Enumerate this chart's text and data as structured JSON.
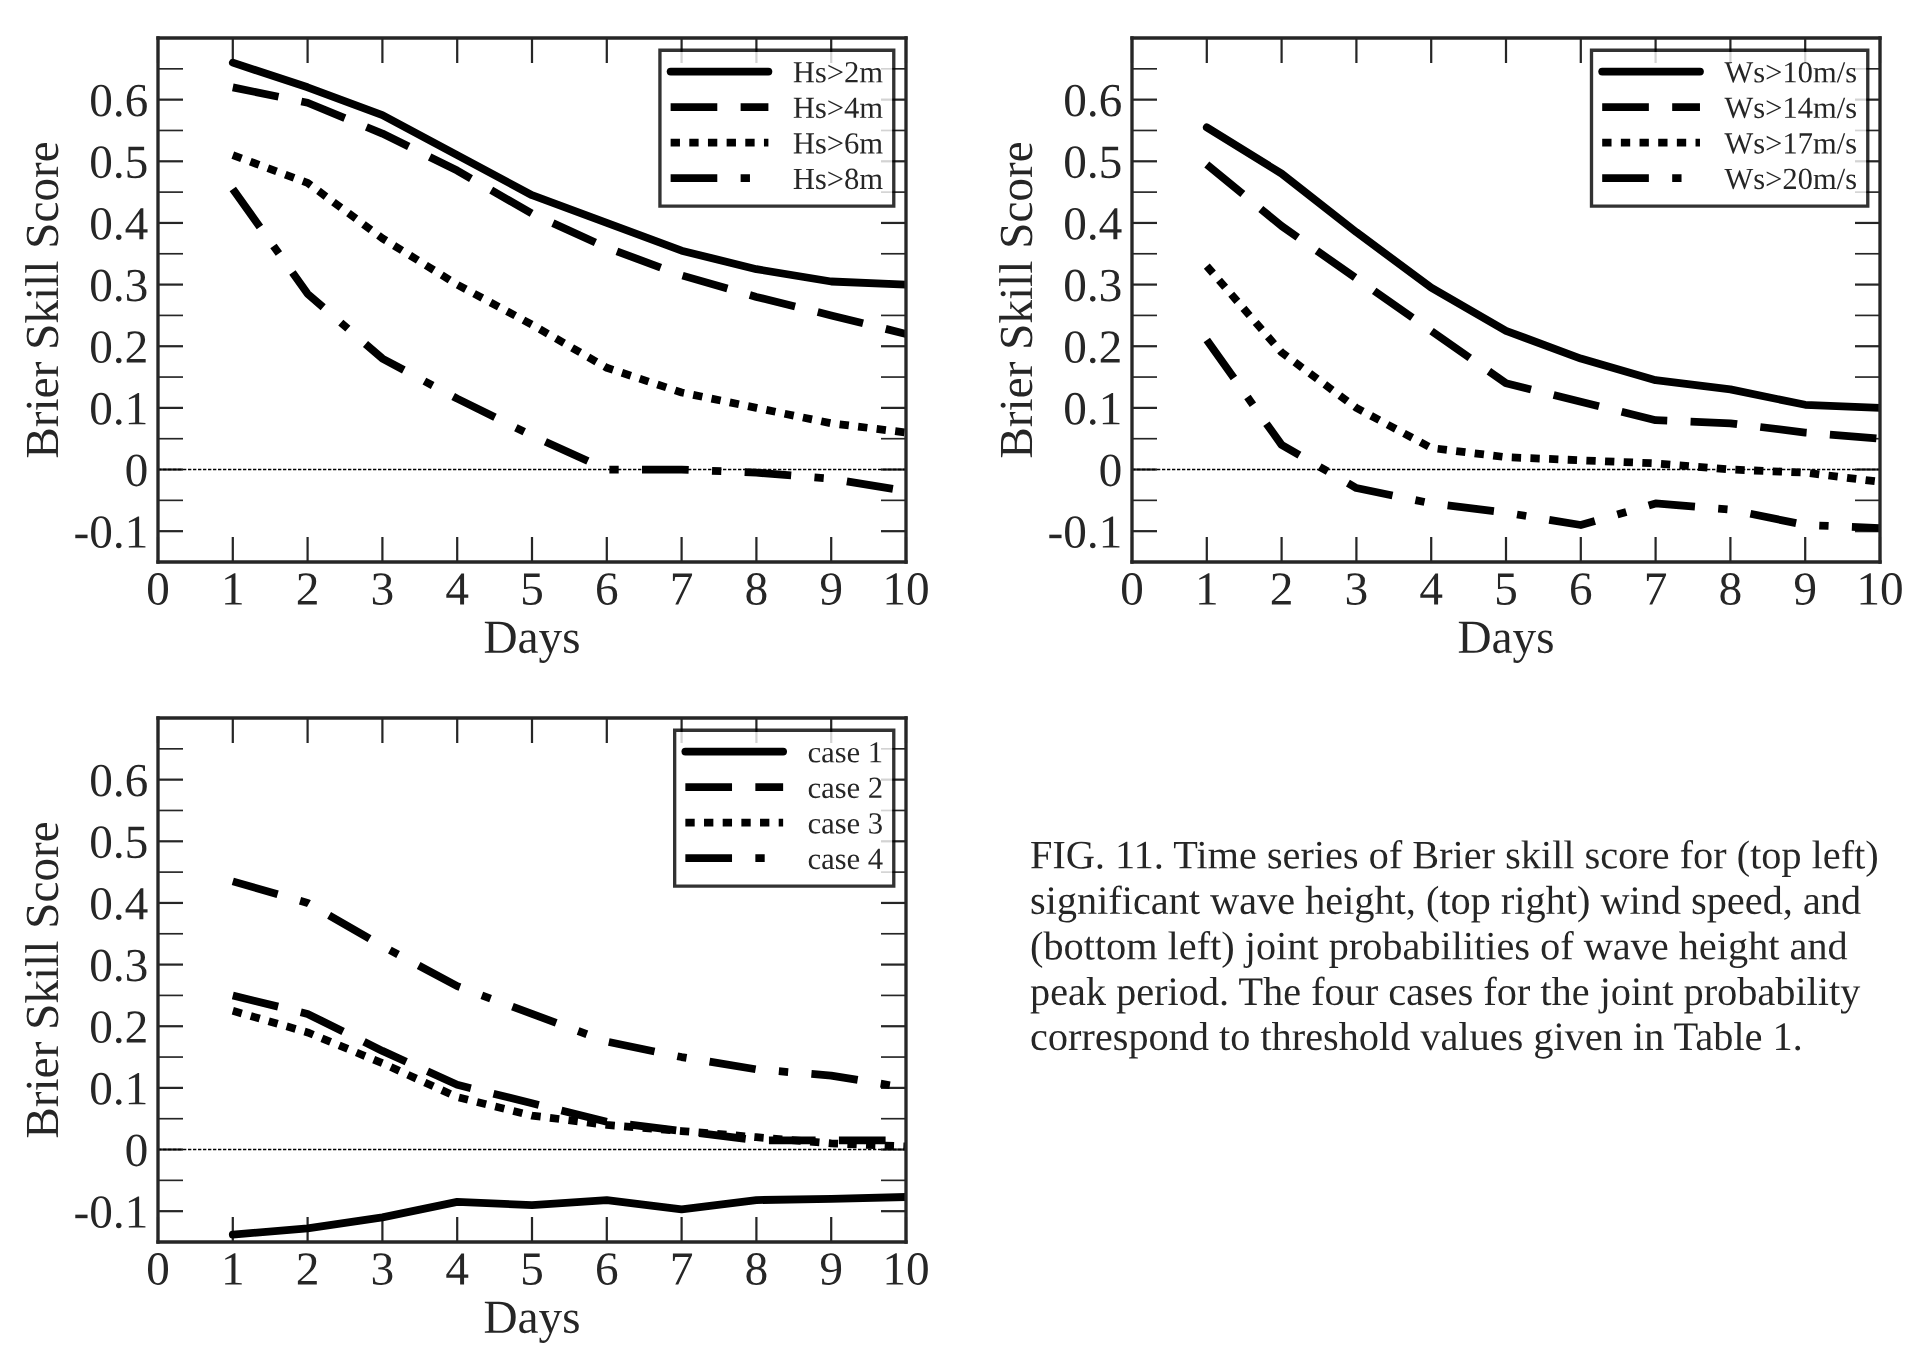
{
  "chart_data": [
    {
      "type": "line",
      "xlabel": "Days",
      "ylabel": "Brier Skill Score",
      "x": [
        1,
        2,
        3,
        4,
        5,
        6,
        7,
        8,
        9,
        10
      ],
      "xlim": [
        0,
        10
      ],
      "xticks": [
        0,
        1,
        2,
        3,
        4,
        5,
        6,
        7,
        8,
        9,
        10
      ],
      "ylim": [
        -0.15,
        0.7
      ],
      "yticks": [
        -0.1,
        0,
        0.1,
        0.2,
        0.3,
        0.4,
        0.5,
        0.6
      ],
      "legend": "top right",
      "grid": false,
      "marker": "none",
      "ref_lines": [
        {
          "axis": "y",
          "value": 0,
          "line_style": "dashed",
          "color": "#000000"
        }
      ],
      "series": [
        {
          "name": "Hs>2m",
          "color": "#000000",
          "line_style": "solid",
          "values": [
            0.66,
            0.62,
            0.575,
            0.51,
            0.445,
            0.4,
            0.355,
            0.325,
            0.305,
            0.3
          ]
        },
        {
          "name": "Hs>4m",
          "color": "#000000",
          "line_style": "dashed",
          "values": [
            0.62,
            0.595,
            0.545,
            0.485,
            0.415,
            0.36,
            0.315,
            0.28,
            0.25,
            0.22
          ]
        },
        {
          "name": "Hs>6m",
          "color": "#000000",
          "line_style": "dotted",
          "values": [
            0.51,
            0.465,
            0.375,
            0.3,
            0.235,
            0.165,
            0.125,
            0.1,
            0.075,
            0.06
          ]
        },
        {
          "name": "Hs>8m",
          "color": "#000000",
          "line_style": "dashdot",
          "values": [
            0.455,
            0.285,
            0.18,
            0.115,
            0.055,
            0.0,
            0.0,
            -0.005,
            -0.015,
            -0.035
          ]
        }
      ]
    },
    {
      "type": "line",
      "xlabel": "Days",
      "ylabel": "Brier Skill Score",
      "x": [
        1,
        2,
        3,
        4,
        5,
        6,
        7,
        8,
        9,
        10
      ],
      "xlim": [
        0,
        10
      ],
      "xticks": [
        0,
        1,
        2,
        3,
        4,
        5,
        6,
        7,
        8,
        9,
        10
      ],
      "ylim": [
        -0.15,
        0.7
      ],
      "yticks": [
        -0.1,
        0,
        0.1,
        0.2,
        0.3,
        0.4,
        0.5,
        0.6
      ],
      "legend": "top right",
      "grid": false,
      "marker": "none",
      "ref_lines": [
        {
          "axis": "y",
          "value": 0,
          "line_style": "dashed",
          "color": "#000000"
        }
      ],
      "series": [
        {
          "name": "Ws>10m/s",
          "color": "#000000",
          "line_style": "solid",
          "values": [
            0.555,
            0.48,
            0.385,
            0.295,
            0.225,
            0.18,
            0.145,
            0.13,
            0.105,
            0.1
          ]
        },
        {
          "name": "Ws>14m/s",
          "color": "#000000",
          "line_style": "dashed",
          "values": [
            0.495,
            0.395,
            0.31,
            0.225,
            0.14,
            0.11,
            0.08,
            0.075,
            0.06,
            0.05
          ]
        },
        {
          "name": "Ws>17m/s",
          "color": "#000000",
          "line_style": "dotted",
          "values": [
            0.33,
            0.19,
            0.1,
            0.035,
            0.02,
            0.015,
            0.01,
            0.0,
            -0.005,
            -0.02
          ]
        },
        {
          "name": "Ws>20m/s",
          "color": "#000000",
          "line_style": "dashdot",
          "values": [
            0.21,
            0.04,
            -0.03,
            -0.055,
            -0.07,
            -0.09,
            -0.055,
            -0.065,
            -0.09,
            -0.095
          ]
        }
      ]
    },
    {
      "type": "line",
      "xlabel": "Days",
      "ylabel": "Brier Skill Score",
      "x": [
        1,
        2,
        3,
        4,
        5,
        6,
        7,
        8,
        9,
        10
      ],
      "xlim": [
        0,
        10
      ],
      "xticks": [
        0,
        1,
        2,
        3,
        4,
        5,
        6,
        7,
        8,
        9,
        10
      ],
      "ylim": [
        -0.15,
        0.7
      ],
      "yticks": [
        -0.1,
        0,
        0.1,
        0.2,
        0.3,
        0.4,
        0.5,
        0.6
      ],
      "legend": "top right",
      "grid": false,
      "marker": "none",
      "ref_lines": [
        {
          "axis": "y",
          "value": 0,
          "line_style": "dashed",
          "color": "#000000"
        }
      ],
      "series": [
        {
          "name": "case 1",
          "color": "#000000",
          "line_style": "solid",
          "values": [
            -0.138,
            -0.128,
            -0.11,
            -0.085,
            -0.09,
            -0.082,
            -0.097,
            -0.082,
            -0.08,
            -0.077
          ]
        },
        {
          "name": "case 2",
          "color": "#000000",
          "line_style": "dashed",
          "values": [
            0.25,
            0.22,
            0.16,
            0.105,
            0.075,
            0.045,
            0.03,
            0.015,
            0.015,
            0.015
          ]
        },
        {
          "name": "case 3",
          "color": "#000000",
          "line_style": "dotted",
          "values": [
            0.225,
            0.19,
            0.14,
            0.085,
            0.055,
            0.04,
            0.03,
            0.02,
            0.01,
            0.005
          ]
        },
        {
          "name": "case 4",
          "color": "#000000",
          "line_style": "dashdot",
          "values": [
            0.435,
            0.4,
            0.33,
            0.265,
            0.22,
            0.175,
            0.15,
            0.13,
            0.12,
            0.1
          ]
        }
      ]
    },
    {
      "type": "other",
      "annotations": [
        "FIG. 11. Time series of Brier skill score for (top left) significant wave height, (top right) wind speed, and (bottom left) joint probabilities of wave height and peak period. The four cases for the joint probability correspond to threshold values given in Table 1."
      ]
    }
  ]
}
